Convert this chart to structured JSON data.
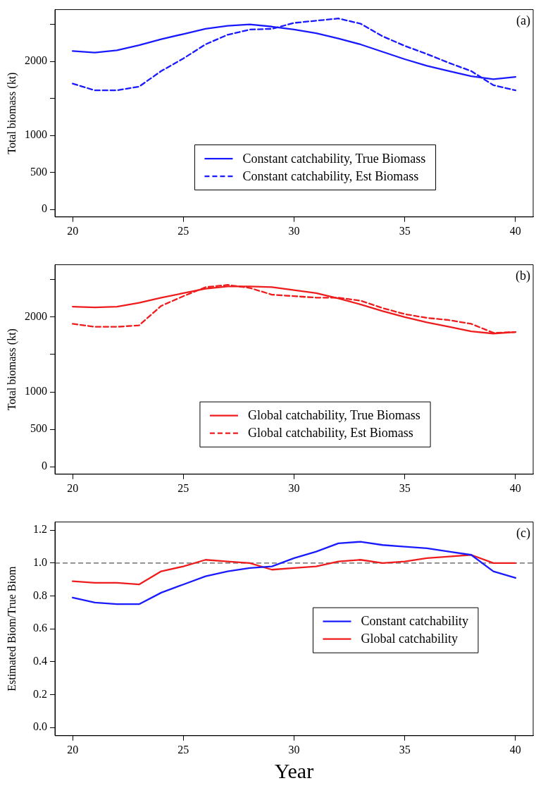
{
  "chart_data": [
    {
      "type": "line",
      "ylabel": "Total biomass (kt)",
      "annotations": [
        "(a)"
      ],
      "legend": "bottom",
      "x": [
        20,
        21,
        22,
        23,
        24,
        25,
        26,
        27,
        28,
        29,
        30,
        31,
        32,
        33,
        34,
        35,
        36,
        37,
        38,
        39,
        40
      ],
      "xlim": [
        19.2,
        40.8
      ],
      "xticks": [
        20,
        25,
        30,
        35,
        40
      ],
      "ylim": [
        -100,
        2700
      ],
      "yticks": [
        0,
        500,
        1000,
        {
          "value": 1500,
          "label": null
        },
        2000,
        {
          "value": 2500,
          "label": null
        }
      ],
      "series": [
        {
          "name": "Constant catchability, True Biomass",
          "color": "#1a1aff",
          "line_style": "solid",
          "values": [
            2140,
            2120,
            2150,
            2220,
            2300,
            2370,
            2440,
            2480,
            2500,
            2470,
            2430,
            2380,
            2310,
            2230,
            2130,
            2030,
            1940,
            1870,
            1800,
            1760,
            1790
          ]
        },
        {
          "name": "Constant catchability, Est Biomass",
          "color": "#1a1aff",
          "line_style": "dashed",
          "values": [
            1700,
            1610,
            1610,
            1660,
            1870,
            2040,
            2230,
            2360,
            2430,
            2440,
            2520,
            2550,
            2580,
            2510,
            2340,
            2210,
            2100,
            1980,
            1870,
            1680,
            1610
          ]
        }
      ]
    },
    {
      "type": "line",
      "ylabel": "Total biomass (kt)",
      "annotations": [
        "(b)"
      ],
      "legend": "bottom",
      "x": [
        20,
        21,
        22,
        23,
        24,
        25,
        26,
        27,
        28,
        29,
        30,
        31,
        32,
        33,
        34,
        35,
        36,
        37,
        38,
        39,
        40
      ],
      "xlim": [
        19.2,
        40.8
      ],
      "xticks": [
        20,
        25,
        30,
        35,
        40
      ],
      "ylim": [
        -100,
        2700
      ],
      "yticks": [
        0,
        500,
        1000,
        {
          "value": 1500,
          "label": null
        },
        2000,
        {
          "value": 2500,
          "label": null
        }
      ],
      "series": [
        {
          "name": "Global catchability, True Biomass",
          "color": "#ee1c1c",
          "line_style": "solid",
          "values": [
            2140,
            2130,
            2140,
            2190,
            2260,
            2320,
            2380,
            2410,
            2410,
            2400,
            2360,
            2320,
            2250,
            2170,
            2080,
            2000,
            1930,
            1870,
            1810,
            1780,
            1800
          ]
        },
        {
          "name": "Global catchability, Est Biomass",
          "color": "#ee1c1c",
          "line_style": "dashed",
          "values": [
            1910,
            1870,
            1870,
            1890,
            2150,
            2280,
            2400,
            2430,
            2390,
            2300,
            2280,
            2260,
            2260,
            2220,
            2120,
            2040,
            1990,
            1960,
            1910,
            1790,
            1800
          ]
        }
      ]
    },
    {
      "type": "line",
      "ylabel": "Estimated Biom/True Biom",
      "xlabel": "Year",
      "annotations": [
        "(c)"
      ],
      "legend": "right",
      "x": [
        20,
        21,
        22,
        23,
        24,
        25,
        26,
        27,
        28,
        29,
        30,
        31,
        32,
        33,
        34,
        35,
        36,
        37,
        38,
        39,
        40
      ],
      "xlim": [
        19.2,
        40.8
      ],
      "xticks": [
        20,
        25,
        30,
        35,
        40
      ],
      "ylim": [
        -0.05,
        1.25
      ],
      "yticks": [
        {
          "value": 0,
          "label": "0.0"
        },
        0.2,
        0.4,
        0.6,
        0.8,
        {
          "value": 1,
          "label": "1.0"
        },
        1.2
      ],
      "ref_lines": [
        {
          "axis": "y",
          "value": 1,
          "color": "#555555",
          "line_style": "dashed"
        }
      ],
      "series": [
        {
          "name": "Constant catchability",
          "color": "#1a1aff",
          "line_style": "solid",
          "values": [
            0.79,
            0.76,
            0.75,
            0.75,
            0.82,
            0.87,
            0.92,
            0.95,
            0.97,
            0.98,
            1.03,
            1.07,
            1.12,
            1.13,
            1.11,
            1.1,
            1.09,
            1.07,
            1.05,
            0.95,
            0.91
          ]
        },
        {
          "name": "Global catchability",
          "color": "#ee1c1c",
          "line_style": "solid",
          "values": [
            0.89,
            0.88,
            0.88,
            0.87,
            0.95,
            0.98,
            1.02,
            1.01,
            1.0,
            0.96,
            0.97,
            0.98,
            1.01,
            1.02,
            1.0,
            1.01,
            1.03,
            1.04,
            1.05,
            1.0,
            1.0
          ]
        }
      ]
    }
  ]
}
